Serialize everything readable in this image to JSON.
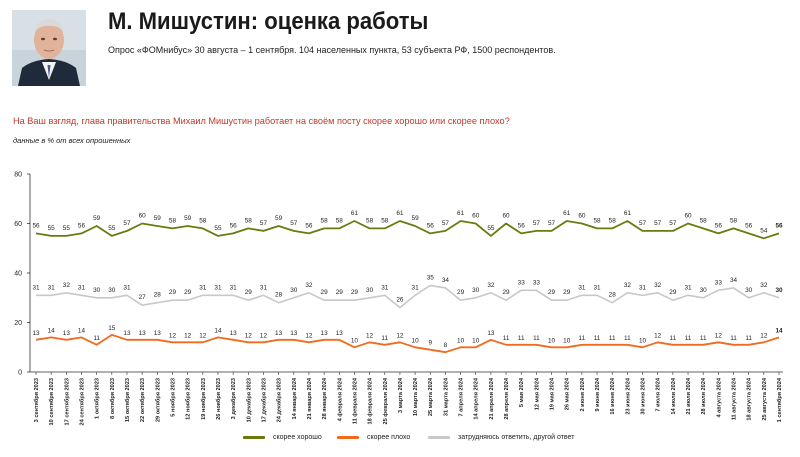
{
  "header": {
    "title": "М. Мишустин: оценка работы",
    "subtitle": "Опрос «ФОМнибус» 30 августа – 1 сентября. 104 населенных пункта, 53 субъекта РФ, 1500 респондентов."
  },
  "question": "На Ваш взгляд, глава правительства Михаил Мишустин работает на своём посту скорее хорошо или скорее плохо?",
  "note": "данные в % от всех опрошенных",
  "colors": {
    "good": "#6b7a0f",
    "bad": "#f26a1b",
    "other": "#c8c8c8"
  },
  "chart_data": {
    "type": "line",
    "ylim": [
      0,
      80
    ],
    "yticks": [
      "0",
      "20",
      "40",
      "60",
      "80"
    ],
    "grid": false,
    "legend_position": "bottom",
    "x": [
      "3 сентября 2023",
      "10 сентября 2023",
      "17 сентября 2023",
      "24 сентября 2023",
      "1 октября 2023",
      "8 октября 2023",
      "15 октября 2023",
      "22 октября 2023",
      "29 октября 2023",
      "5 ноября 2023",
      "12 ноября 2023",
      "19 ноября 2023",
      "26 ноября 2023",
      "3 декабря 2023",
      "10 декабря 2023",
      "17 декабря 2023",
      "24 декабря 2023",
      "14 января 2024",
      "21 января 2024",
      "28 января 2024",
      "4 февраля 2024",
      "11 февраля 2024",
      "18 февраля 2024",
      "25 февраля 2024",
      "3 марта 2024",
      "10 марта 2024",
      "25 марта 2024",
      "31 марта 2024",
      "7 апреля 2024",
      "14 апреля 2024",
      "21 апреля 2024",
      "28 апреля 2024",
      "5 мая 2024",
      "12 мая 2024",
      "19 мая 2024",
      "26 мая 2024",
      "2 июня 2024",
      "9 июня 2024",
      "16 июня 2024",
      "23 июня 2024",
      "30 июня 2024",
      "7 июля 2024",
      "14 июля 2024",
      "21 июля 2024",
      "28 июля 2024",
      "4 августа 2024",
      "11 августа 2024",
      "18 августа 2024",
      "25 августа 2024",
      "1 сентября 2024"
    ],
    "series": [
      {
        "name": "скорее хорошо",
        "key": "good",
        "values": [
          56,
          55,
          55,
          56,
          59,
          55,
          57,
          60,
          59,
          58,
          59,
          58,
          55,
          56,
          58,
          57,
          59,
          57,
          56,
          58,
          58,
          61,
          58,
          58,
          61,
          59,
          56,
          57,
          61,
          60,
          55,
          60,
          56,
          57,
          57,
          61,
          60,
          58,
          58,
          61,
          57,
          57,
          57,
          60,
          58,
          56,
          58,
          56,
          54,
          56
        ]
      },
      {
        "name": "скорее плохо",
        "key": "bad",
        "values": [
          13,
          14,
          13,
          14,
          11,
          15,
          13,
          13,
          13,
          12,
          12,
          12,
          14,
          13,
          12,
          12,
          13,
          13,
          12,
          13,
          13,
          10,
          12,
          11,
          12,
          10,
          9,
          8,
          10,
          10,
          13,
          11,
          11,
          11,
          10,
          10,
          11,
          11,
          11,
          11,
          10,
          12,
          11,
          11,
          11,
          12,
          11,
          11,
          12,
          14
        ]
      },
      {
        "name": "затрудняюсь ответить, другой ответ",
        "key": "other",
        "values": [
          31,
          31,
          32,
          31,
          30,
          30,
          31,
          27,
          28,
          29,
          29,
          31,
          31,
          31,
          29,
          31,
          28,
          30,
          32,
          29,
          29,
          29,
          30,
          31,
          26,
          31,
          35,
          34,
          29,
          30,
          32,
          29,
          33,
          33,
          29,
          29,
          31,
          31,
          28,
          32,
          31,
          32,
          29,
          31,
          30,
          33,
          34,
          30,
          32,
          30
        ]
      }
    ]
  }
}
